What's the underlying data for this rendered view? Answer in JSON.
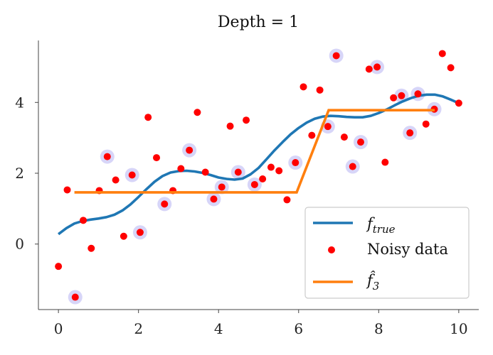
{
  "chart_data": {
    "type": "scatter",
    "title": "Depth = 1",
    "xlabel": "",
    "ylabel": "",
    "xlim": [
      -0.5,
      10.5
    ],
    "ylim": [
      -1.85,
      5.75
    ],
    "x_ticks": [
      0,
      2,
      4,
      6,
      8,
      10
    ],
    "y_ticks": [
      0,
      2,
      4
    ],
    "grid": false,
    "legend_placement": "lower-right",
    "colors": {
      "f_true": "#1f77b4",
      "f_hat": "#ff7f0e",
      "noisy": "#ff0000",
      "highlight": "#b7b3f2"
    },
    "series": [
      {
        "name": "f_true",
        "legend_main": "f",
        "legend_sub": "true",
        "kind": "line",
        "points": [
          [
            0.0,
            0.28
          ],
          [
            0.2,
            0.45
          ],
          [
            0.4,
            0.58
          ],
          [
            0.6,
            0.65
          ],
          [
            0.8,
            0.69
          ],
          [
            1.0,
            0.72
          ],
          [
            1.2,
            0.76
          ],
          [
            1.4,
            0.83
          ],
          [
            1.6,
            0.95
          ],
          [
            1.8,
            1.12
          ],
          [
            2.0,
            1.33
          ],
          [
            2.2,
            1.55
          ],
          [
            2.4,
            1.76
          ],
          [
            2.6,
            1.92
          ],
          [
            2.8,
            2.02
          ],
          [
            3.0,
            2.06
          ],
          [
            3.2,
            2.07
          ],
          [
            3.4,
            2.05
          ],
          [
            3.6,
            2.01
          ],
          [
            3.8,
            1.95
          ],
          [
            4.0,
            1.88
          ],
          [
            4.2,
            1.84
          ],
          [
            4.4,
            1.82
          ],
          [
            4.6,
            1.85
          ],
          [
            4.8,
            1.97
          ],
          [
            5.0,
            2.15
          ],
          [
            5.2,
            2.4
          ],
          [
            5.4,
            2.65
          ],
          [
            5.6,
            2.88
          ],
          [
            5.8,
            3.1
          ],
          [
            6.0,
            3.28
          ],
          [
            6.2,
            3.43
          ],
          [
            6.4,
            3.54
          ],
          [
            6.6,
            3.6
          ],
          [
            6.8,
            3.62
          ],
          [
            7.0,
            3.61
          ],
          [
            7.2,
            3.59
          ],
          [
            7.4,
            3.58
          ],
          [
            7.6,
            3.58
          ],
          [
            7.8,
            3.62
          ],
          [
            8.0,
            3.7
          ],
          [
            8.2,
            3.8
          ],
          [
            8.4,
            3.92
          ],
          [
            8.6,
            4.03
          ],
          [
            8.8,
            4.12
          ],
          [
            9.0,
            4.19
          ],
          [
            9.2,
            4.22
          ],
          [
            9.4,
            4.22
          ],
          [
            9.6,
            4.17
          ],
          [
            9.8,
            4.08
          ],
          [
            10.0,
            3.98
          ]
        ]
      },
      {
        "name": "Noisy data",
        "kind": "scatter",
        "points": [
          [
            0.0,
            -0.63
          ],
          [
            0.22,
            1.53
          ],
          [
            0.42,
            -1.5
          ],
          [
            0.62,
            0.67
          ],
          [
            0.82,
            -0.12
          ],
          [
            1.02,
            1.51
          ],
          [
            1.22,
            2.47
          ],
          [
            1.43,
            1.81
          ],
          [
            1.63,
            0.22
          ],
          [
            1.84,
            1.95
          ],
          [
            2.04,
            0.33
          ],
          [
            2.24,
            3.58
          ],
          [
            2.45,
            2.44
          ],
          [
            2.65,
            1.13
          ],
          [
            2.86,
            1.51
          ],
          [
            3.06,
            2.13
          ],
          [
            3.27,
            2.65
          ],
          [
            3.47,
            3.72
          ],
          [
            3.67,
            2.03
          ],
          [
            3.88,
            1.27
          ],
          [
            4.08,
            1.61
          ],
          [
            4.29,
            3.33
          ],
          [
            4.49,
            2.03
          ],
          [
            4.69,
            3.5
          ],
          [
            4.9,
            1.68
          ],
          [
            5.1,
            1.84
          ],
          [
            5.31,
            2.17
          ],
          [
            5.51,
            2.07
          ],
          [
            5.71,
            1.25
          ],
          [
            5.92,
            2.3
          ],
          [
            6.12,
            4.44
          ],
          [
            6.33,
            3.07
          ],
          [
            6.53,
            4.35
          ],
          [
            6.73,
            3.32
          ],
          [
            6.94,
            5.32
          ],
          [
            7.14,
            3.02
          ],
          [
            7.35,
            2.19
          ],
          [
            7.55,
            2.88
          ],
          [
            7.76,
            4.94
          ],
          [
            7.96,
            5.0
          ],
          [
            8.16,
            2.31
          ],
          [
            8.37,
            4.13
          ],
          [
            8.57,
            4.19
          ],
          [
            8.78,
            3.14
          ],
          [
            8.98,
            4.24
          ],
          [
            9.18,
            3.39
          ],
          [
            9.39,
            3.81
          ],
          [
            9.59,
            5.38
          ],
          [
            9.8,
            4.98
          ],
          [
            10.0,
            3.98
          ]
        ],
        "highlighted_x": [
          0.42,
          1.22,
          1.84,
          2.04,
          2.65,
          3.27,
          3.88,
          4.08,
          4.49,
          4.9,
          5.92,
          6.73,
          6.94,
          7.35,
          7.55,
          7.96,
          8.57,
          8.78,
          8.98,
          9.39
        ]
      },
      {
        "name": "f_hat_3",
        "legend_main": "f̂",
        "legend_sub": "3",
        "kind": "step",
        "points": [
          [
            0.4,
            1.46
          ],
          [
            5.95,
            1.46
          ],
          [
            6.75,
            3.78
          ],
          [
            9.4,
            3.78
          ]
        ]
      }
    ]
  }
}
